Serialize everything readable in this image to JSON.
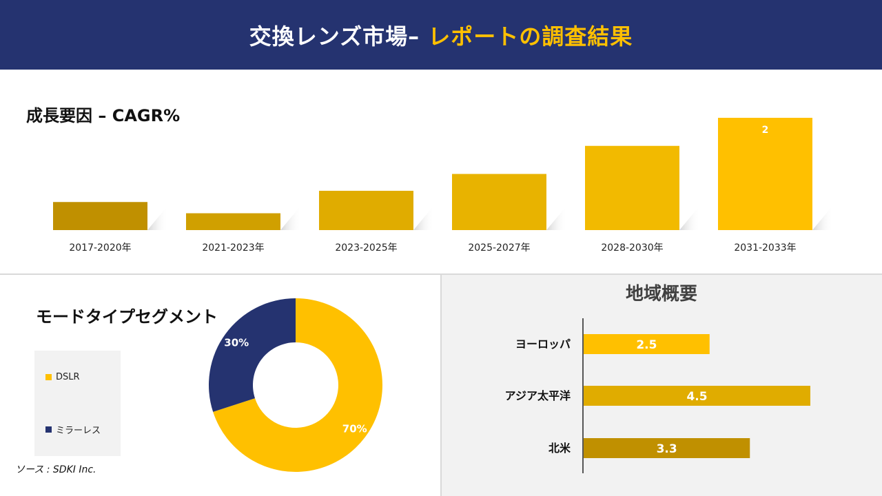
{
  "header": {
    "title_main": "交換レンズ市場– ",
    "title_highlight": "レポートの調査結果"
  },
  "growth": {
    "title": "成長要因 – CAGR%"
  },
  "segment": {
    "title": "モードタイプセグメント"
  },
  "region": {
    "title": "地域概要"
  },
  "source": "ソース : SDKI Inc.",
  "colors": {
    "navy": "#253370",
    "gold": "#ffc000",
    "gold_mid": "#e0ac00",
    "gold_dark": "#c09000"
  },
  "chart_data": [
    {
      "type": "bar",
      "categories": [
        "2017-2020年",
        "2021-2023年",
        "2023-2025年",
        "2025-2027年",
        "2028-2030年",
        "2031-2033年"
      ],
      "values": [
        0.5,
        0.3,
        0.7,
        1.0,
        1.5,
        2.0
      ],
      "data_labels": [
        "",
        "",
        "",
        "",
        "",
        "2"
      ],
      "ylim": [
        0,
        2.0
      ],
      "grid": false
    },
    {
      "type": "pie",
      "donut": true,
      "categories": [
        "DSLR",
        "ミラーレス"
      ],
      "values": [
        70,
        30
      ],
      "labels": [
        "70%",
        "30%"
      ],
      "colors": [
        "#ffc000",
        "#253370"
      ],
      "legend_position": "left"
    },
    {
      "type": "bar",
      "orientation": "horizontal",
      "categories": [
        "ヨーロッパ",
        "アジア太平洋",
        "北米"
      ],
      "values": [
        2.5,
        4.5,
        3.3
      ],
      "data_labels": [
        "2.5",
        "4.5",
        "3.3"
      ],
      "xlim": [
        0,
        4.5
      ],
      "grid": false
    }
  ]
}
